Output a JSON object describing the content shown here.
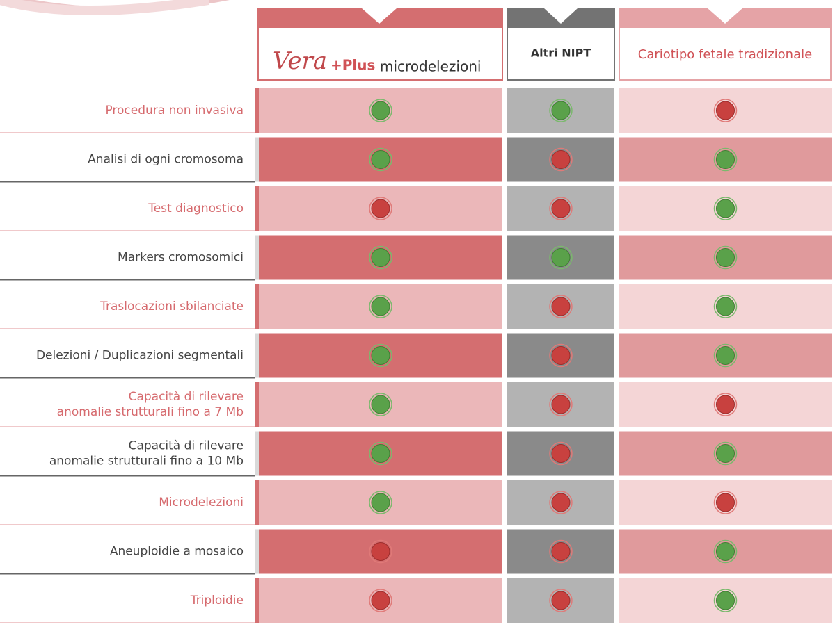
{
  "header": {
    "product": {
      "brand": "Vera",
      "plus": "+Plus",
      "name": "microdelezioni"
    },
    "other": "Altri NIPT",
    "karyotype": "Cariotipo fetale tradizionale"
  },
  "table": {
    "rows": [
      {
        "label": [
          "Procedura non invasiva"
        ],
        "cells": [
          true,
          true,
          false
        ]
      },
      {
        "label": [
          "Analisi di ogni cromosoma"
        ],
        "cells": [
          true,
          false,
          true
        ]
      },
      {
        "label": [
          "Test diagnostico"
        ],
        "cells": [
          false,
          false,
          true
        ]
      },
      {
        "label": [
          "Markers cromosomici"
        ],
        "cells": [
          true,
          true,
          true
        ]
      },
      {
        "label": [
          "Traslocazioni sbilanciate"
        ],
        "cells": [
          true,
          false,
          true
        ]
      },
      {
        "label": [
          "Delezioni /  Duplicazioni segmentali"
        ],
        "cells": [
          true,
          false,
          true
        ]
      },
      {
        "label": [
          "Capacità di rilevare",
          "anomalie strutturali fino a 7 Mb"
        ],
        "cells": [
          true,
          false,
          false
        ]
      },
      {
        "label": [
          "Capacità di rilevare",
          "anomalie strutturali fino a 10 Mb"
        ],
        "cells": [
          true,
          false,
          true
        ]
      },
      {
        "label": [
          "Microdelezioni"
        ],
        "cells": [
          true,
          false,
          false
        ]
      },
      {
        "label": [
          "Aneuploidie a mosaico"
        ],
        "cells": [
          false,
          false,
          true
        ]
      },
      {
        "label": [
          "Triploidie"
        ],
        "cells": [
          false,
          false,
          true
        ]
      }
    ]
  }
}
